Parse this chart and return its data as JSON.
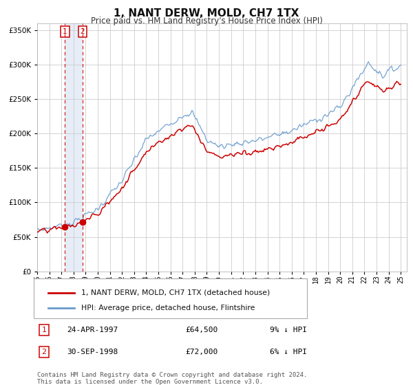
{
  "title": "1, NANT DERW, MOLD, CH7 1TX",
  "subtitle": "Price paid vs. HM Land Registry's House Price Index (HPI)",
  "legend_label_red": "1, NANT DERW, MOLD, CH7 1TX (detached house)",
  "legend_label_blue": "HPI: Average price, detached house, Flintshire",
  "transaction1_date": "24-APR-1997",
  "transaction1_price": "£64,500",
  "transaction1_hpi": "9% ↓ HPI",
  "transaction2_date": "30-SEP-1998",
  "transaction2_price": "£72,000",
  "transaction2_hpi": "6% ↓ HPI",
  "footer": "Contains HM Land Registry data © Crown copyright and database right 2024.\nThis data is licensed under the Open Government Licence v3.0.",
  "sale1_x": 1997.29,
  "sale1_y": 64500,
  "sale2_x": 1998.75,
  "sale2_y": 72000,
  "color_red": "#cc0000",
  "color_blue": "#6699cc",
  "color_shade": "#c8d8ee",
  "background_color": "#ffffff",
  "grid_color": "#cccccc",
  "ylim": [
    0,
    360000
  ],
  "xlim_start": 1995.0,
  "xlim_end": 2025.5
}
